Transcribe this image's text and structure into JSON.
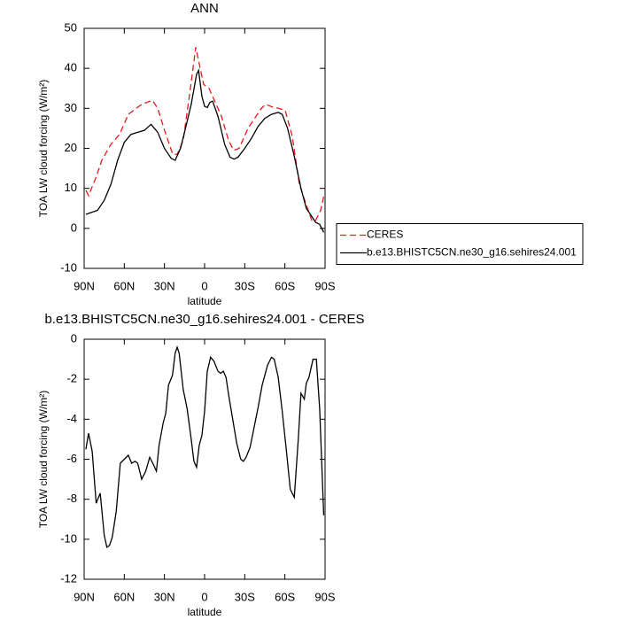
{
  "chart_data": [
    {
      "type": "line",
      "title": "ANN",
      "x_label": "latitude",
      "y_label": "TOA LW cloud forcing (W/m²)",
      "xlim": [
        90,
        -90
      ],
      "ylim": [
        -10,
        50
      ],
      "xticks": [
        {
          "value": 90,
          "label": "90N"
        },
        {
          "value": 60,
          "label": "60N"
        },
        {
          "value": 30,
          "label": "30N"
        },
        0,
        {
          "value": -30,
          "label": "30S"
        },
        {
          "value": -60,
          "label": "60S"
        },
        {
          "value": -90,
          "label": "90S"
        }
      ],
      "yticks": [
        -10,
        0,
        10,
        20,
        30,
        40,
        50
      ],
      "legend": "right",
      "series": [
        {
          "name": "CERES",
          "color": "#e8191b",
          "line_style": "dashed",
          "x": [
            88.7,
            86.7,
            81.4,
            76.8,
            70,
            63.5,
            57,
            47,
            39,
            35,
            30.4,
            23.8,
            20.5,
            16,
            10.6,
            6.6,
            3.3,
            0.7,
            -3.3,
            -7.3,
            -12.6,
            -17.9,
            -21.8,
            -25.8,
            -32.4,
            -42.4,
            -45.7,
            -51,
            -55.6,
            -60.2,
            -65.5,
            -70.8,
            -74.8,
            -80.1,
            -82.7,
            -86.7,
            -89.3
          ],
          "values": [
            9.5,
            8.2,
            12.5,
            17,
            21,
            23.5,
            28.5,
            31,
            32,
            30,
            25,
            18.5,
            18.5,
            22,
            35,
            45.3,
            40,
            36,
            35,
            32,
            28,
            22,
            19.5,
            20,
            25,
            30,
            31,
            30.3,
            30,
            29.5,
            23,
            11,
            7,
            2,
            1.8,
            4.5,
            8.5
          ]
        },
        {
          "name": "b.e13.BHISTC5CN.ne30_g16.sehires24.001",
          "color": "#000000",
          "line_style": "solid",
          "x": [
            88.7,
            80,
            75,
            70,
            65,
            60,
            55,
            50,
            45,
            40,
            35,
            30,
            25,
            22,
            18,
            15,
            10,
            6,
            4.5,
            2,
            0,
            -2,
            -4,
            -6,
            -10,
            -15,
            -19,
            -22,
            -25,
            -30,
            -35,
            -40,
            -45,
            -50,
            -55,
            -58,
            -62,
            -67,
            -72,
            -76,
            -80,
            -83,
            -86,
            -89
          ],
          "values": [
            3.5,
            4.5,
            7,
            11,
            17,
            21.5,
            23.5,
            24,
            24.5,
            26,
            24,
            20,
            17.5,
            17,
            20,
            24,
            31,
            38.5,
            39.5,
            33,
            30.5,
            30.2,
            31.5,
            31.8,
            28,
            21,
            17.8,
            17.3,
            17.8,
            20,
            22.5,
            25.5,
            27.5,
            28.5,
            29,
            28.5,
            25,
            18,
            10,
            5,
            3,
            1.5,
            1,
            -1
          ]
        }
      ]
    },
    {
      "type": "line",
      "title": "b.e13.BHISTC5CN.ne30_g16.sehires24.001 - CERES",
      "x_label": "latitude",
      "y_label": "TOA LW cloud forcing (W/m²)",
      "xlim": [
        90,
        -90
      ],
      "ylim": [
        -12,
        0
      ],
      "xticks": [
        {
          "value": 90,
          "label": "90N"
        },
        {
          "value": 60,
          "label": "60N"
        },
        {
          "value": 30,
          "label": "30N"
        },
        0,
        {
          "value": -30,
          "label": "30S"
        },
        {
          "value": -60,
          "label": "60S"
        },
        {
          "value": -90,
          "label": "90S"
        }
      ],
      "yticks": [
        -12,
        -10,
        -8,
        -6,
        -4,
        -2,
        0
      ],
      "series": [
        {
          "color": "#000000",
          "line_style": "solid",
          "x": [
            88.7,
            86.7,
            84,
            81,
            78,
            75,
            73,
            71,
            69,
            66,
            63,
            60,
            57,
            54.5,
            52,
            50,
            47,
            44,
            41,
            38,
            36,
            34,
            31,
            29,
            27,
            24,
            22,
            20.5,
            19,
            16,
            13,
            10,
            8,
            6,
            4,
            2,
            0,
            -2,
            -4.5,
            -7,
            -10,
            -12,
            -14,
            -16,
            -18,
            -21,
            -24,
            -27,
            -29,
            -31,
            -34,
            -37,
            -40,
            -43,
            -47,
            -50,
            -52,
            -55,
            -58,
            -61,
            -64,
            -67,
            -70,
            -72,
            -74.5,
            -76,
            -78,
            -81,
            -83.5,
            -86,
            -89
          ],
          "values": [
            -5.5,
            -4.7,
            -5.6,
            -8.2,
            -7.7,
            -9.8,
            -10.4,
            -10.3,
            -9.9,
            -8.6,
            -6.2,
            -6.0,
            -5.8,
            -6.2,
            -6.1,
            -6.2,
            -7.0,
            -6.6,
            -5.9,
            -6.3,
            -6.6,
            -5.3,
            -4.2,
            -3.7,
            -2.3,
            -1.8,
            -0.7,
            -0.4,
            -0.7,
            -2.5,
            -3.5,
            -5.0,
            -6.1,
            -6.4,
            -5.3,
            -4.8,
            -3.6,
            -1.6,
            -0.9,
            -1.1,
            -1.6,
            -1.7,
            -1.6,
            -1.9,
            -2.8,
            -4.0,
            -5.2,
            -6.0,
            -6.1,
            -5.9,
            -5.4,
            -4.4,
            -3.4,
            -2.3,
            -1.3,
            -0.9,
            -1.0,
            -1.9,
            -3.6,
            -5.5,
            -7.5,
            -7.9,
            -5.0,
            -2.7,
            -3.0,
            -2.2,
            -1.9,
            -1.0,
            -1.0,
            -3.5,
            -8.8
          ]
        }
      ]
    }
  ]
}
